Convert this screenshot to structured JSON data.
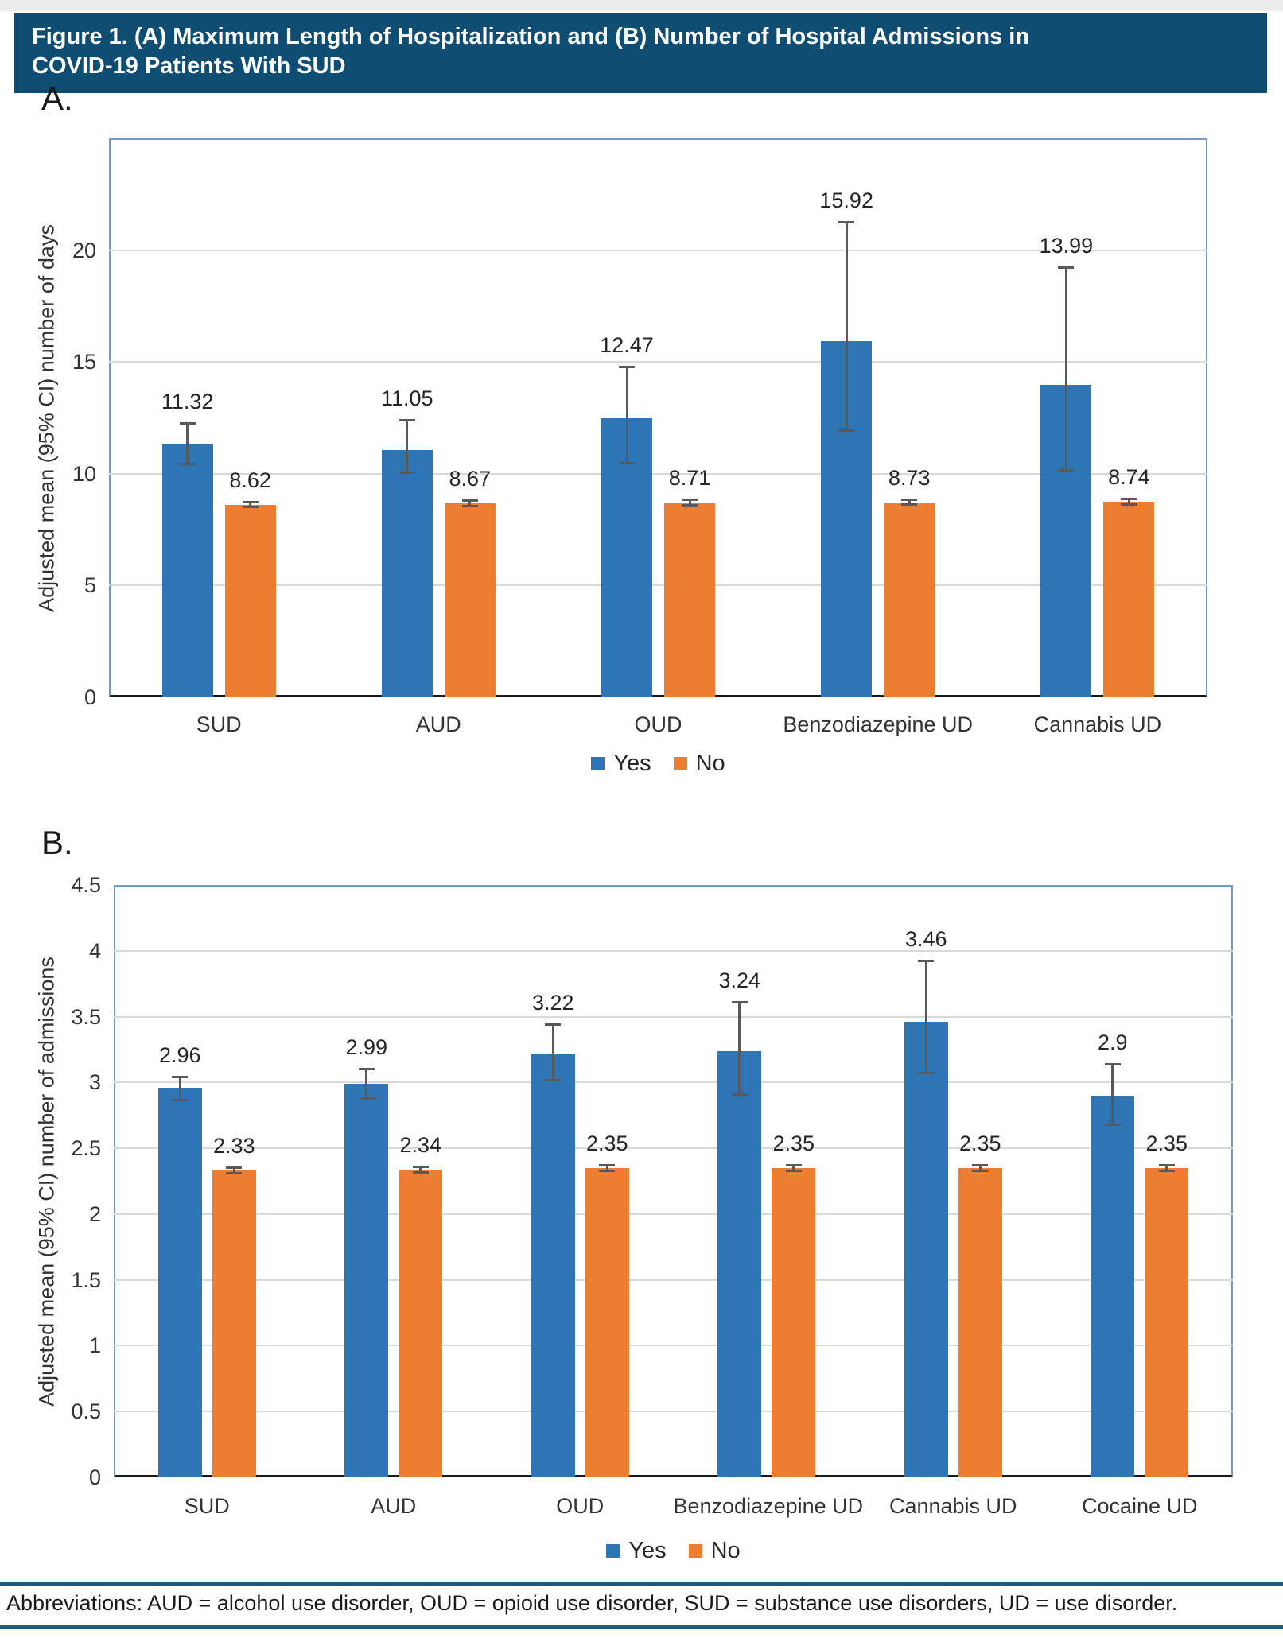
{
  "page": {
    "title_line1": "Figure 1. (A) Maximum Length of Hospitalization and (B) Number of Hospital Admissions in",
    "title_line2": "COVID-19 Patients With SUD",
    "panel_a": "A.",
    "panel_b": "B.",
    "footer": "Abbreviations: AUD = alcohol use disorder, OUD = opioid use disorder, SUD = substance use disorders, UD = use disorder."
  },
  "colors": {
    "header_bg": "#0F4D73",
    "rule": "#155E8C",
    "yes": "#2E75B6",
    "no": "#ED7D31",
    "error": "#595959",
    "gridline": "#D9D9D9",
    "plot_border": "#6E9BD1",
    "axis": "#1A1A1A"
  },
  "chart_data": [
    {
      "type": "bar",
      "panel": "A",
      "ylabel": "Adjusted mean (95% CI) number of days",
      "ylim": [
        0,
        25
      ],
      "ytick_step": 5,
      "ytick_labels": [
        "0",
        "5",
        "10",
        "15",
        "20"
      ],
      "grid": true,
      "legend_position": "bottom",
      "categories": [
        "SUD",
        "AUD",
        "OUD",
        "Benzodiazepine UD",
        "Cannabis UD"
      ],
      "series": [
        {
          "name": "Yes",
          "color_key": "yes",
          "values": [
            11.32,
            11.05,
            12.47,
            15.92,
            13.99
          ],
          "ci_low": [
            10.39,
            10.0,
            10.43,
            11.89,
            10.1
          ],
          "ci_high": [
            12.32,
            12.45,
            14.82,
            21.29,
            19.27
          ]
        },
        {
          "name": "No",
          "color_key": "no",
          "values": [
            8.62,
            8.67,
            8.71,
            8.73,
            8.74
          ],
          "ci_low": [
            8.45,
            8.5,
            8.55,
            8.56,
            8.58
          ],
          "ci_high": [
            8.8,
            8.85,
            8.88,
            8.9,
            8.91
          ]
        }
      ]
    },
    {
      "type": "bar",
      "panel": "B",
      "ylabel": "Adjusted mean (95% CI) number of admissions",
      "ylim": [
        0,
        4.5
      ],
      "ytick_step": 0.5,
      "ytick_labels": [
        "0",
        "0.5",
        "1",
        "1.5",
        "2",
        "2.5",
        "3",
        "3.5",
        "4",
        "4.5"
      ],
      "grid": true,
      "legend_position": "bottom",
      "categories": [
        "SUD",
        "AUD",
        "OUD",
        "Benzodiazepine UD",
        "Cannabis UD",
        "Cocaine UD"
      ],
      "series": [
        {
          "name": "Yes",
          "color_key": "yes",
          "values": [
            2.96,
            2.99,
            3.22,
            3.24,
            3.46,
            2.9
          ],
          "ci_low": [
            2.86,
            2.87,
            3.01,
            2.9,
            3.06,
            2.67
          ],
          "ci_high": [
            3.05,
            3.11,
            3.45,
            3.62,
            3.93,
            3.15
          ]
        },
        {
          "name": "No",
          "color_key": "no",
          "values": [
            2.33,
            2.34,
            2.35,
            2.35,
            2.35,
            2.35
          ],
          "ci_low": [
            2.3,
            2.31,
            2.32,
            2.32,
            2.32,
            2.32
          ],
          "ci_high": [
            2.36,
            2.37,
            2.38,
            2.38,
            2.38,
            2.38
          ]
        }
      ]
    }
  ]
}
